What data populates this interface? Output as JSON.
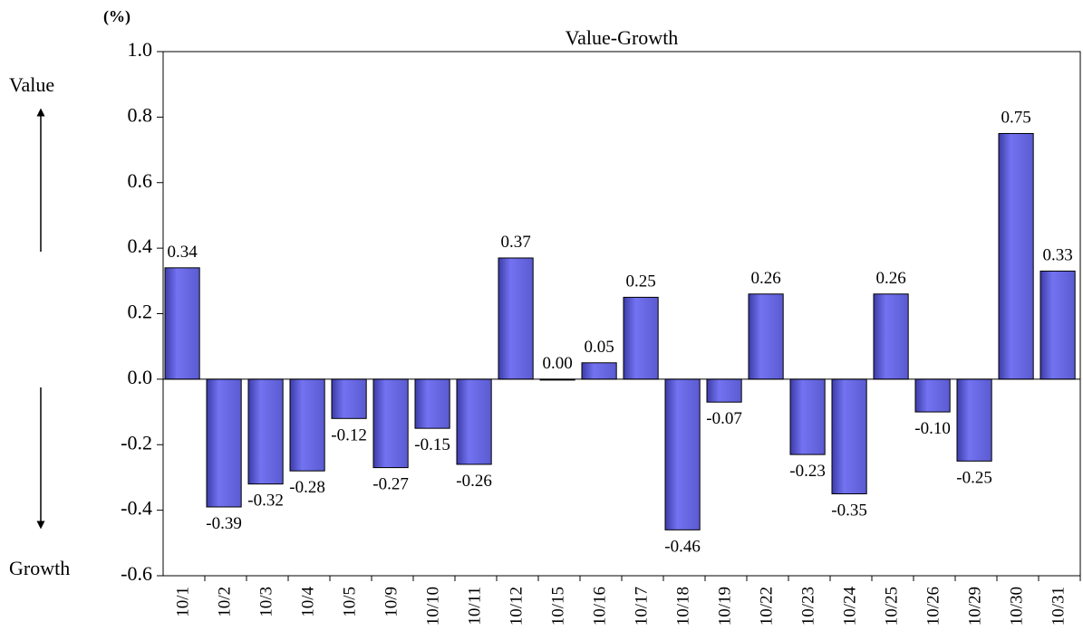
{
  "chart_data": {
    "type": "bar",
    "title": "Value-Growth",
    "y_unit": "(%)",
    "annotations": {
      "top": "Value",
      "bottom": "Growth"
    },
    "categories": [
      "10/1",
      "10/2",
      "10/3",
      "10/4",
      "10/5",
      "10/9",
      "10/10",
      "10/11",
      "10/12",
      "10/15",
      "10/16",
      "10/17",
      "10/18",
      "10/19",
      "10/22",
      "10/23",
      "10/24",
      "10/25",
      "10/26",
      "10/29",
      "10/30",
      "10/31"
    ],
    "values": [
      0.34,
      -0.39,
      -0.32,
      -0.28,
      -0.12,
      -0.27,
      -0.15,
      -0.26,
      0.37,
      0.0,
      0.05,
      0.25,
      -0.46,
      -0.07,
      0.26,
      -0.23,
      -0.35,
      0.26,
      -0.1,
      -0.25,
      0.75,
      0.33
    ],
    "value_labels": [
      "0.34",
      "-0.39",
      "-0.32",
      "-0.28",
      "-0.12",
      "-0.27",
      "-0.15",
      "-0.26",
      "0.37",
      "0.00",
      "0.05",
      "0.25",
      "-0.46",
      "-0.07",
      "0.26",
      "-0.23",
      "-0.35",
      "0.26",
      "-0.10",
      "-0.25",
      "0.75",
      "0.33"
    ],
    "color": "#7373f2",
    "ylim": [
      -0.6,
      1.0
    ],
    "yticks": [
      {
        "value": -0.6,
        "label": "-0.6"
      },
      {
        "value": -0.4,
        "label": "-0.4"
      },
      {
        "value": -0.2,
        "label": "-0.2"
      },
      {
        "value": 0,
        "label": "0.0"
      },
      {
        "value": 0.2,
        "label": "0.2"
      },
      {
        "value": 0.4,
        "label": "0.4"
      },
      {
        "value": 0.6,
        "label": "0.6"
      },
      {
        "value": 0.8,
        "label": "0.8"
      },
      {
        "value": 1.0,
        "label": "1.0"
      }
    ]
  }
}
